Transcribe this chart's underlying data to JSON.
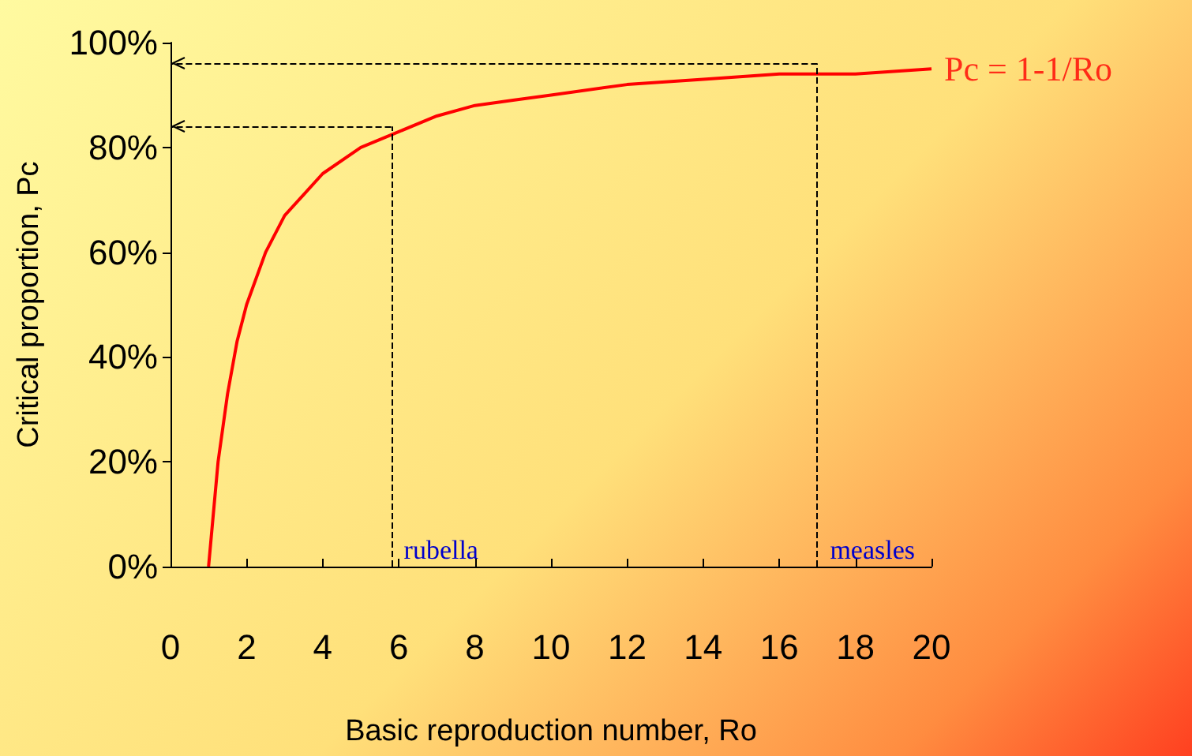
{
  "chart_data": {
    "type": "line",
    "xlabel": "Basic reproduction number, Ro",
    "ylabel": "Critical proportion, Pc",
    "x": [
      1,
      1.25,
      1.5,
      1.75,
      2,
      2.5,
      3,
      3.5,
      4,
      5,
      6,
      7,
      8,
      9,
      10,
      12,
      14,
      16,
      18,
      20
    ],
    "series": [
      {
        "color": "#ff0000",
        "values": [
          0,
          20,
          33,
          43,
          50,
          60,
          67,
          71,
          75,
          80,
          83,
          86,
          88,
          89,
          90,
          92,
          93,
          94,
          94,
          95
        ]
      }
    ],
    "xlim": [
      0,
      20
    ],
    "xticks": [
      0,
      2,
      4,
      6,
      8,
      10,
      12,
      14,
      16,
      18,
      20
    ],
    "ylim": [
      0,
      100
    ],
    "yticks": [
      {
        "value": 0,
        "label": "0%"
      },
      {
        "value": 20,
        "label": "20%"
      },
      {
        "value": 40,
        "label": "40%"
      },
      {
        "value": 60,
        "label": "60%"
      },
      {
        "value": 80,
        "label": "80%"
      },
      {
        "value": 100,
        "label": "100%"
      }
    ],
    "ref_lines": [
      {
        "axis": "x",
        "value": 5.8,
        "label": "rubella",
        "line_style": "dashed"
      },
      {
        "axis": "x",
        "value": 17,
        "label": "measles",
        "line_style": "dashed"
      },
      {
        "axis": "y",
        "value": 84,
        "label": null,
        "line_style": "dashed"
      },
      {
        "axis": "y",
        "value": 96,
        "label": null,
        "line_style": "dashed"
      }
    ],
    "annotations": [
      {
        "text": "Pc = 1-1/Ro",
        "x": 20,
        "y": 95
      }
    ],
    "grid": false,
    "marker": "none",
    "line_style": "solid"
  }
}
